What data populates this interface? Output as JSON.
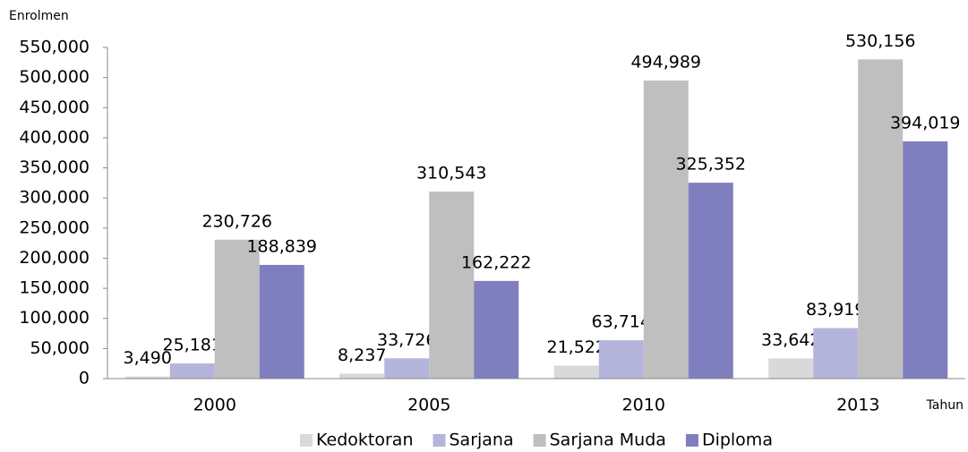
{
  "chart_data": {
    "type": "bar",
    "y_label": "Enrolmen",
    "x_label": "Tahun",
    "categories": [
      "2000",
      "2005",
      "2010",
      "2013"
    ],
    "series": [
      {
        "name": "Kedoktoran",
        "color": "#d9d9d9",
        "values": [
          3490,
          8237,
          21522,
          33642
        ],
        "value_labels": [
          "3,490",
          "8,237",
          "21,522",
          "33,642"
        ]
      },
      {
        "name": "Sarjana",
        "color": "#b4b4dc",
        "values": [
          25181,
          33726,
          63714,
          83919
        ],
        "value_labels": [
          "25,181",
          "33,726",
          "63,714",
          "83,919"
        ]
      },
      {
        "name": "Sarjana Muda",
        "color": "#bfbfbf",
        "values": [
          230726,
          310543,
          494989,
          530156
        ],
        "value_labels": [
          "230,726",
          "310,543",
          "494,989",
          "530,156"
        ]
      },
      {
        "name": "Diploma",
        "color": "#7f7fbf",
        "values": [
          188839,
          162222,
          325352,
          394019
        ],
        "value_labels": [
          "188,839",
          "162,222",
          "325,352",
          "394,019"
        ]
      }
    ],
    "ylim": [
      0,
      550000
    ],
    "yticks": [
      0,
      {
        "value": 50000,
        "label": "50,000"
      },
      {
        "value": 100000,
        "label": "100,000"
      },
      {
        "value": 150000,
        "label": "150,000"
      },
      {
        "value": 200000,
        "label": "200,000"
      },
      {
        "value": 250000,
        "label": "250,000"
      },
      {
        "value": 300000,
        "label": "300,000"
      },
      {
        "value": 350000,
        "label": "350,000"
      },
      {
        "value": 400000,
        "label": "400,000"
      },
      {
        "value": 450000,
        "label": "450,000"
      },
      {
        "value": 500000,
        "label": "500,000"
      },
      {
        "value": 550000,
        "label": "550,000"
      }
    ],
    "legend": "bottom"
  }
}
